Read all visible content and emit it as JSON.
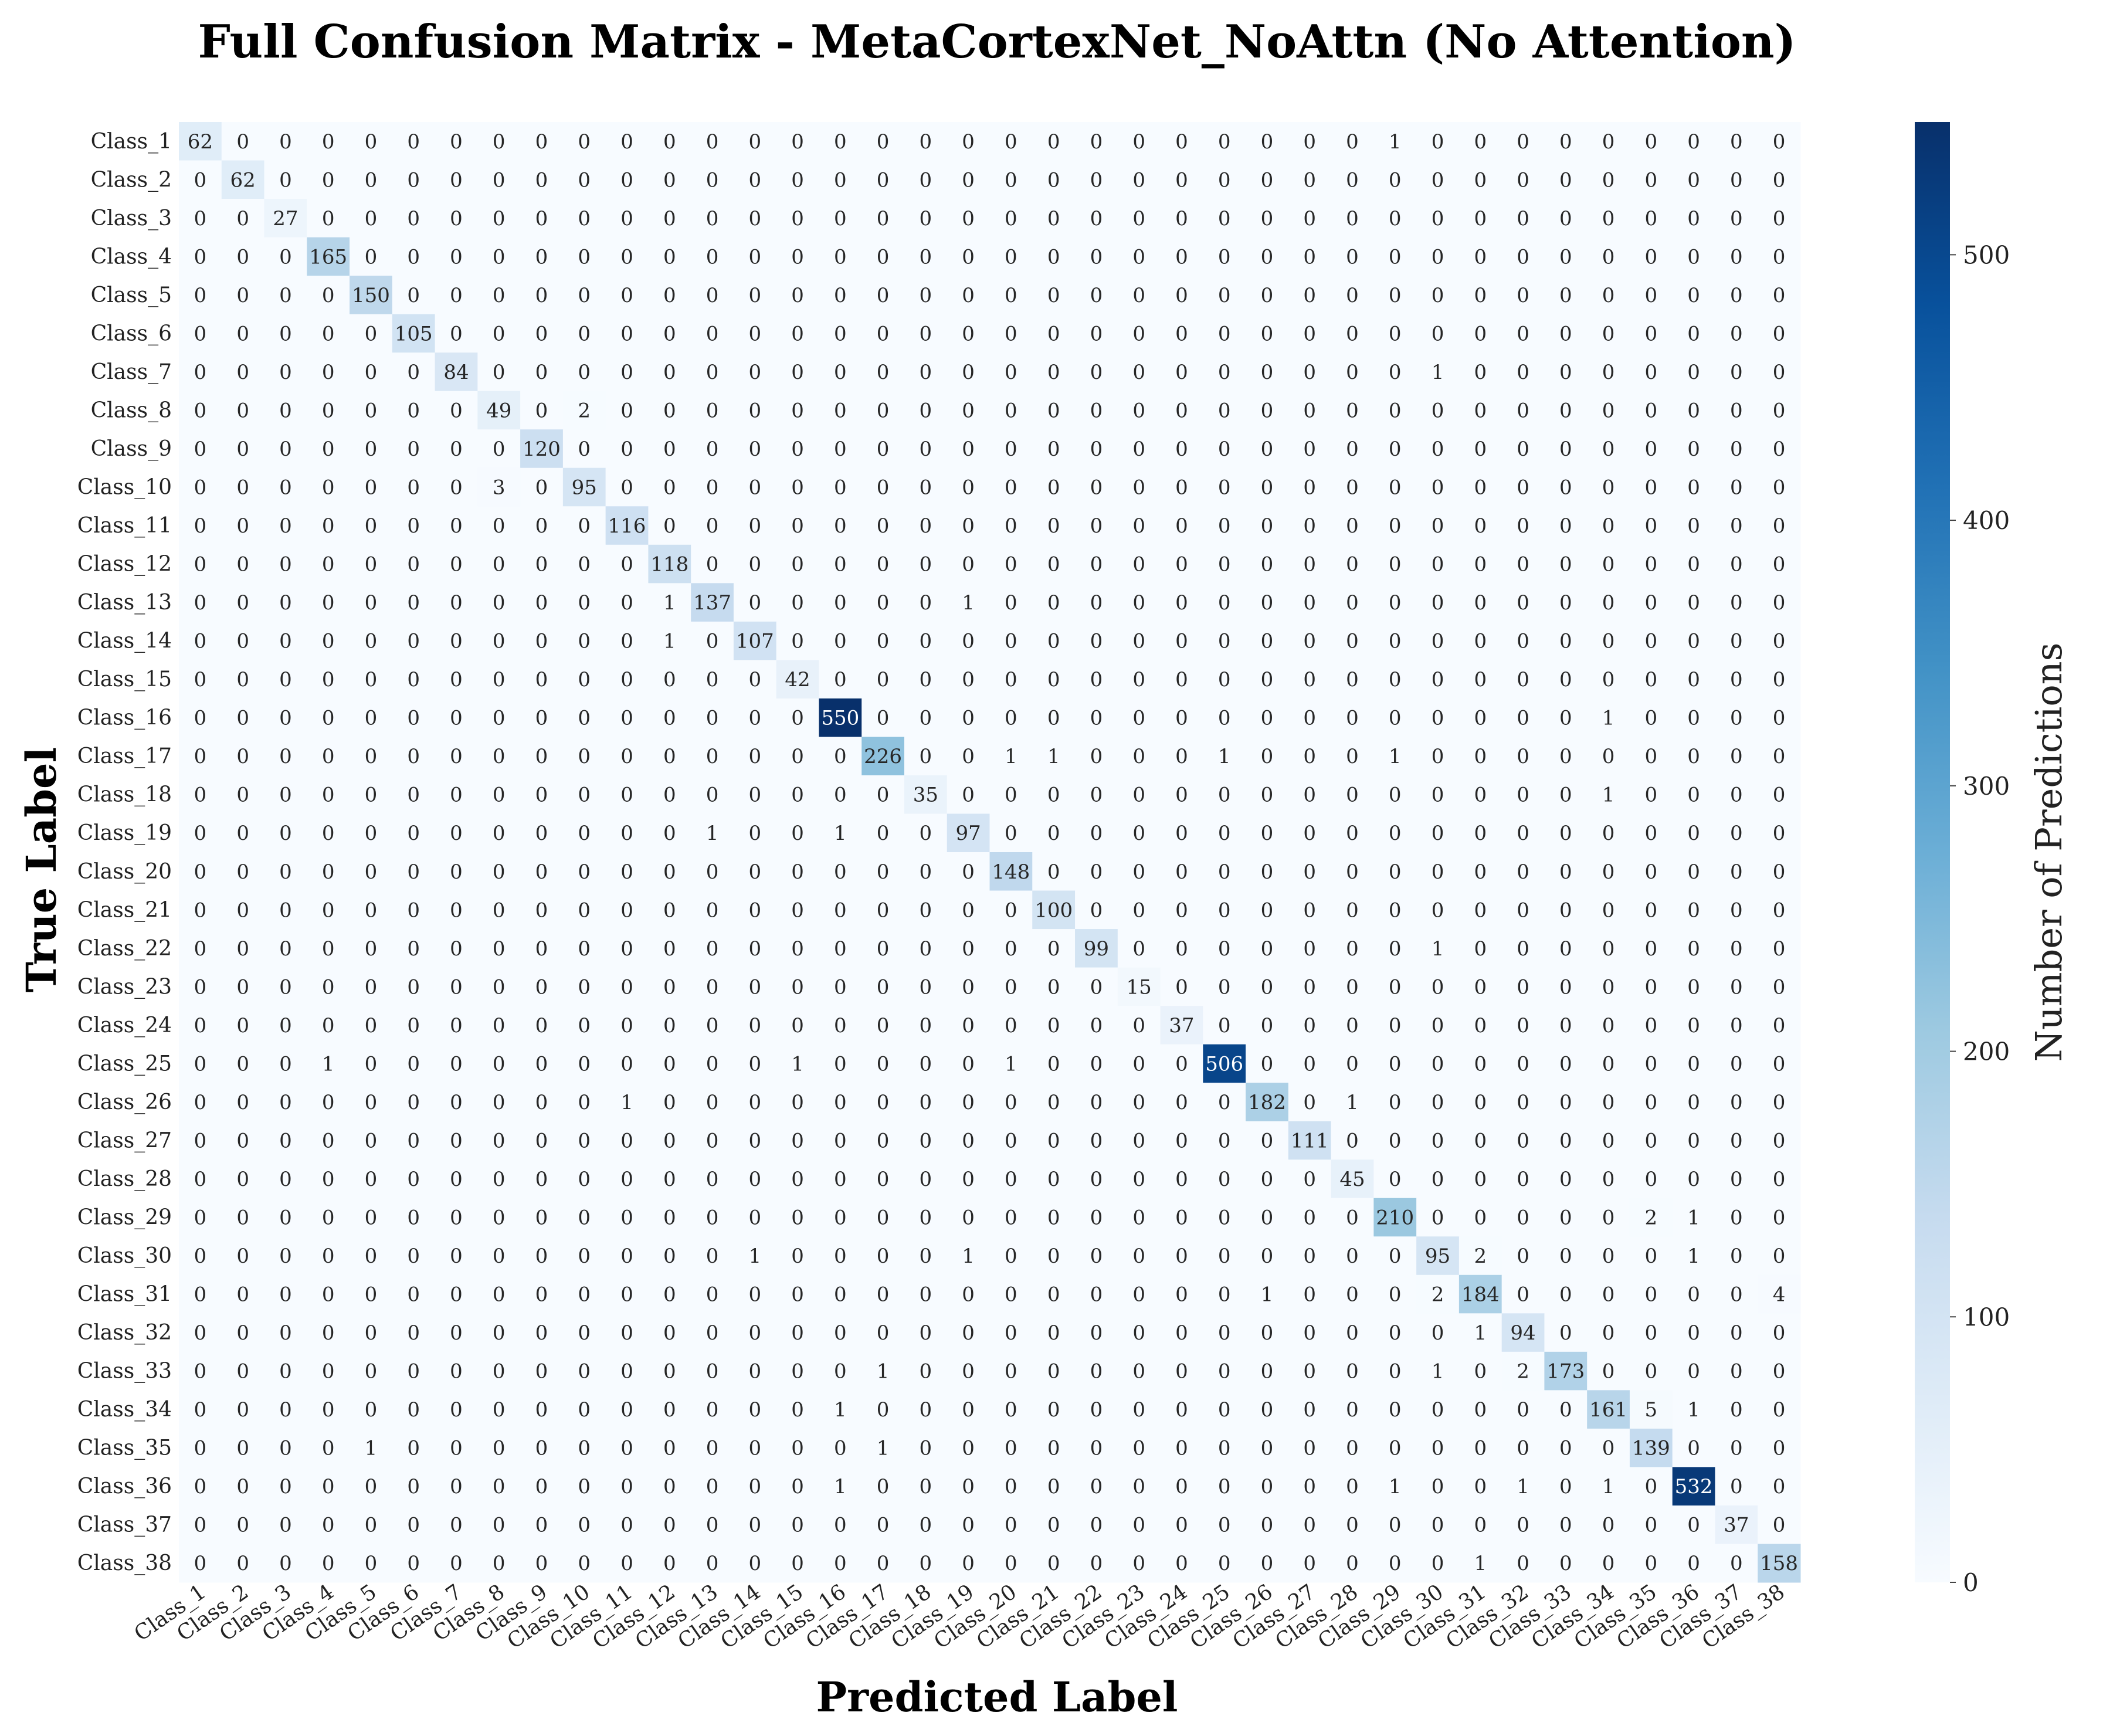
{
  "chart_data": {
    "type": "heatmap",
    "title": "Full Confusion Matrix - MetaCortexNet_NoAttn (No Attention)",
    "xlabel": "Predicted Label",
    "ylabel": "True Label",
    "colorbar_label": "Number of Predictions",
    "colorbar_ticks": [
      0,
      100,
      200,
      300,
      400,
      500
    ],
    "vmin": 0,
    "vmax": 550,
    "colormap": "Blues",
    "colors": {
      "low": "#f7fbff",
      "high": "#08306b"
    },
    "x_categories": [
      "Class_1",
      "Class_2",
      "Class_3",
      "Class_4",
      "Class_5",
      "Class_6",
      "Class_7",
      "Class_8",
      "Class_9",
      "Class_10",
      "Class_11",
      "Class_12",
      "Class_13",
      "Class_14",
      "Class_15",
      "Class_16",
      "Class_17",
      "Class_18",
      "Class_19",
      "Class_20",
      "Class_21",
      "Class_22",
      "Class_23",
      "Class_24",
      "Class_25",
      "Class_26",
      "Class_27",
      "Class_28",
      "Class_29",
      "Class_30",
      "Class_31",
      "Class_32",
      "Class_33",
      "Class_34",
      "Class_35",
      "Class_36",
      "Class_37",
      "Class_38"
    ],
    "y_categories": [
      "Class_1",
      "Class_2",
      "Class_3",
      "Class_4",
      "Class_5",
      "Class_6",
      "Class_7",
      "Class_8",
      "Class_9",
      "Class_10",
      "Class_11",
      "Class_12",
      "Class_13",
      "Class_14",
      "Class_15",
      "Class_16",
      "Class_17",
      "Class_18",
      "Class_19",
      "Class_20",
      "Class_21",
      "Class_22",
      "Class_23",
      "Class_24",
      "Class_25",
      "Class_26",
      "Class_27",
      "Class_28",
      "Class_29",
      "Class_30",
      "Class_31",
      "Class_32",
      "Class_33",
      "Class_34",
      "Class_35",
      "Class_36",
      "Class_37",
      "Class_38"
    ],
    "matrix": [
      [
        62,
        0,
        0,
        0,
        0,
        0,
        0,
        0,
        0,
        0,
        0,
        0,
        0,
        0,
        0,
        0,
        0,
        0,
        0,
        0,
        0,
        0,
        0,
        0,
        0,
        0,
        0,
        0,
        1,
        0,
        0,
        0,
        0,
        0,
        0,
        0,
        0,
        0
      ],
      [
        0,
        62,
        0,
        0,
        0,
        0,
        0,
        0,
        0,
        0,
        0,
        0,
        0,
        0,
        0,
        0,
        0,
        0,
        0,
        0,
        0,
        0,
        0,
        0,
        0,
        0,
        0,
        0,
        0,
        0,
        0,
        0,
        0,
        0,
        0,
        0,
        0,
        0
      ],
      [
        0,
        0,
        27,
        0,
        0,
        0,
        0,
        0,
        0,
        0,
        0,
        0,
        0,
        0,
        0,
        0,
        0,
        0,
        0,
        0,
        0,
        0,
        0,
        0,
        0,
        0,
        0,
        0,
        0,
        0,
        0,
        0,
        0,
        0,
        0,
        0,
        0,
        0
      ],
      [
        0,
        0,
        0,
        165,
        0,
        0,
        0,
        0,
        0,
        0,
        0,
        0,
        0,
        0,
        0,
        0,
        0,
        0,
        0,
        0,
        0,
        0,
        0,
        0,
        0,
        0,
        0,
        0,
        0,
        0,
        0,
        0,
        0,
        0,
        0,
        0,
        0,
        0
      ],
      [
        0,
        0,
        0,
        0,
        150,
        0,
        0,
        0,
        0,
        0,
        0,
        0,
        0,
        0,
        0,
        0,
        0,
        0,
        0,
        0,
        0,
        0,
        0,
        0,
        0,
        0,
        0,
        0,
        0,
        0,
        0,
        0,
        0,
        0,
        0,
        0,
        0,
        0
      ],
      [
        0,
        0,
        0,
        0,
        0,
        105,
        0,
        0,
        0,
        0,
        0,
        0,
        0,
        0,
        0,
        0,
        0,
        0,
        0,
        0,
        0,
        0,
        0,
        0,
        0,
        0,
        0,
        0,
        0,
        0,
        0,
        0,
        0,
        0,
        0,
        0,
        0,
        0
      ],
      [
        0,
        0,
        0,
        0,
        0,
        0,
        84,
        0,
        0,
        0,
        0,
        0,
        0,
        0,
        0,
        0,
        0,
        0,
        0,
        0,
        0,
        0,
        0,
        0,
        0,
        0,
        0,
        0,
        0,
        1,
        0,
        0,
        0,
        0,
        0,
        0,
        0,
        0
      ],
      [
        0,
        0,
        0,
        0,
        0,
        0,
        0,
        49,
        0,
        2,
        0,
        0,
        0,
        0,
        0,
        0,
        0,
        0,
        0,
        0,
        0,
        0,
        0,
        0,
        0,
        0,
        0,
        0,
        0,
        0,
        0,
        0,
        0,
        0,
        0,
        0,
        0,
        0
      ],
      [
        0,
        0,
        0,
        0,
        0,
        0,
        0,
        0,
        120,
        0,
        0,
        0,
        0,
        0,
        0,
        0,
        0,
        0,
        0,
        0,
        0,
        0,
        0,
        0,
        0,
        0,
        0,
        0,
        0,
        0,
        0,
        0,
        0,
        0,
        0,
        0,
        0,
        0
      ],
      [
        0,
        0,
        0,
        0,
        0,
        0,
        0,
        3,
        0,
        95,
        0,
        0,
        0,
        0,
        0,
        0,
        0,
        0,
        0,
        0,
        0,
        0,
        0,
        0,
        0,
        0,
        0,
        0,
        0,
        0,
        0,
        0,
        0,
        0,
        0,
        0,
        0,
        0
      ],
      [
        0,
        0,
        0,
        0,
        0,
        0,
        0,
        0,
        0,
        0,
        116,
        0,
        0,
        0,
        0,
        0,
        0,
        0,
        0,
        0,
        0,
        0,
        0,
        0,
        0,
        0,
        0,
        0,
        0,
        0,
        0,
        0,
        0,
        0,
        0,
        0,
        0,
        0
      ],
      [
        0,
        0,
        0,
        0,
        0,
        0,
        0,
        0,
        0,
        0,
        0,
        118,
        0,
        0,
        0,
        0,
        0,
        0,
        0,
        0,
        0,
        0,
        0,
        0,
        0,
        0,
        0,
        0,
        0,
        0,
        0,
        0,
        0,
        0,
        0,
        0,
        0,
        0
      ],
      [
        0,
        0,
        0,
        0,
        0,
        0,
        0,
        0,
        0,
        0,
        0,
        1,
        137,
        0,
        0,
        0,
        0,
        0,
        1,
        0,
        0,
        0,
        0,
        0,
        0,
        0,
        0,
        0,
        0,
        0,
        0,
        0,
        0,
        0,
        0,
        0,
        0,
        0
      ],
      [
        0,
        0,
        0,
        0,
        0,
        0,
        0,
        0,
        0,
        0,
        0,
        1,
        0,
        107,
        0,
        0,
        0,
        0,
        0,
        0,
        0,
        0,
        0,
        0,
        0,
        0,
        0,
        0,
        0,
        0,
        0,
        0,
        0,
        0,
        0,
        0,
        0,
        0
      ],
      [
        0,
        0,
        0,
        0,
        0,
        0,
        0,
        0,
        0,
        0,
        0,
        0,
        0,
        0,
        42,
        0,
        0,
        0,
        0,
        0,
        0,
        0,
        0,
        0,
        0,
        0,
        0,
        0,
        0,
        0,
        0,
        0,
        0,
        0,
        0,
        0,
        0,
        0
      ],
      [
        0,
        0,
        0,
        0,
        0,
        0,
        0,
        0,
        0,
        0,
        0,
        0,
        0,
        0,
        0,
        550,
        0,
        0,
        0,
        0,
        0,
        0,
        0,
        0,
        0,
        0,
        0,
        0,
        0,
        0,
        0,
        0,
        0,
        1,
        0,
        0,
        0,
        0
      ],
      [
        0,
        0,
        0,
        0,
        0,
        0,
        0,
        0,
        0,
        0,
        0,
        0,
        0,
        0,
        0,
        0,
        226,
        0,
        0,
        1,
        1,
        0,
        0,
        0,
        1,
        0,
        0,
        0,
        1,
        0,
        0,
        0,
        0,
        0,
        0,
        0,
        0,
        0
      ],
      [
        0,
        0,
        0,
        0,
        0,
        0,
        0,
        0,
        0,
        0,
        0,
        0,
        0,
        0,
        0,
        0,
        0,
        35,
        0,
        0,
        0,
        0,
        0,
        0,
        0,
        0,
        0,
        0,
        0,
        0,
        0,
        0,
        0,
        1,
        0,
        0,
        0,
        0
      ],
      [
        0,
        0,
        0,
        0,
        0,
        0,
        0,
        0,
        0,
        0,
        0,
        0,
        1,
        0,
        0,
        1,
        0,
        0,
        97,
        0,
        0,
        0,
        0,
        0,
        0,
        0,
        0,
        0,
        0,
        0,
        0,
        0,
        0,
        0,
        0,
        0,
        0,
        0
      ],
      [
        0,
        0,
        0,
        0,
        0,
        0,
        0,
        0,
        0,
        0,
        0,
        0,
        0,
        0,
        0,
        0,
        0,
        0,
        0,
        148,
        0,
        0,
        0,
        0,
        0,
        0,
        0,
        0,
        0,
        0,
        0,
        0,
        0,
        0,
        0,
        0,
        0,
        0
      ],
      [
        0,
        0,
        0,
        0,
        0,
        0,
        0,
        0,
        0,
        0,
        0,
        0,
        0,
        0,
        0,
        0,
        0,
        0,
        0,
        0,
        100,
        0,
        0,
        0,
        0,
        0,
        0,
        0,
        0,
        0,
        0,
        0,
        0,
        0,
        0,
        0,
        0,
        0
      ],
      [
        0,
        0,
        0,
        0,
        0,
        0,
        0,
        0,
        0,
        0,
        0,
        0,
        0,
        0,
        0,
        0,
        0,
        0,
        0,
        0,
        0,
        99,
        0,
        0,
        0,
        0,
        0,
        0,
        0,
        1,
        0,
        0,
        0,
        0,
        0,
        0,
        0,
        0
      ],
      [
        0,
        0,
        0,
        0,
        0,
        0,
        0,
        0,
        0,
        0,
        0,
        0,
        0,
        0,
        0,
        0,
        0,
        0,
        0,
        0,
        0,
        0,
        15,
        0,
        0,
        0,
        0,
        0,
        0,
        0,
        0,
        0,
        0,
        0,
        0,
        0,
        0,
        0
      ],
      [
        0,
        0,
        0,
        0,
        0,
        0,
        0,
        0,
        0,
        0,
        0,
        0,
        0,
        0,
        0,
        0,
        0,
        0,
        0,
        0,
        0,
        0,
        0,
        37,
        0,
        0,
        0,
        0,
        0,
        0,
        0,
        0,
        0,
        0,
        0,
        0,
        0,
        0
      ],
      [
        0,
        0,
        0,
        1,
        0,
        0,
        0,
        0,
        0,
        0,
        0,
        0,
        0,
        0,
        1,
        0,
        0,
        0,
        0,
        1,
        0,
        0,
        0,
        0,
        506,
        0,
        0,
        0,
        0,
        0,
        0,
        0,
        0,
        0,
        0,
        0,
        0,
        0
      ],
      [
        0,
        0,
        0,
        0,
        0,
        0,
        0,
        0,
        0,
        0,
        1,
        0,
        0,
        0,
        0,
        0,
        0,
        0,
        0,
        0,
        0,
        0,
        0,
        0,
        0,
        182,
        0,
        1,
        0,
        0,
        0,
        0,
        0,
        0,
        0,
        0,
        0,
        0
      ],
      [
        0,
        0,
        0,
        0,
        0,
        0,
        0,
        0,
        0,
        0,
        0,
        0,
        0,
        0,
        0,
        0,
        0,
        0,
        0,
        0,
        0,
        0,
        0,
        0,
        0,
        0,
        111,
        0,
        0,
        0,
        0,
        0,
        0,
        0,
        0,
        0,
        0,
        0
      ],
      [
        0,
        0,
        0,
        0,
        0,
        0,
        0,
        0,
        0,
        0,
        0,
        0,
        0,
        0,
        0,
        0,
        0,
        0,
        0,
        0,
        0,
        0,
        0,
        0,
        0,
        0,
        0,
        45,
        0,
        0,
        0,
        0,
        0,
        0,
        0,
        0,
        0,
        0
      ],
      [
        0,
        0,
        0,
        0,
        0,
        0,
        0,
        0,
        0,
        0,
        0,
        0,
        0,
        0,
        0,
        0,
        0,
        0,
        0,
        0,
        0,
        0,
        0,
        0,
        0,
        0,
        0,
        0,
        210,
        0,
        0,
        0,
        0,
        0,
        2,
        1,
        0,
        0
      ],
      [
        0,
        0,
        0,
        0,
        0,
        0,
        0,
        0,
        0,
        0,
        0,
        0,
        0,
        1,
        0,
        0,
        0,
        0,
        1,
        0,
        0,
        0,
        0,
        0,
        0,
        0,
        0,
        0,
        0,
        95,
        2,
        0,
        0,
        0,
        0,
        1,
        0,
        0
      ],
      [
        0,
        0,
        0,
        0,
        0,
        0,
        0,
        0,
        0,
        0,
        0,
        0,
        0,
        0,
        0,
        0,
        0,
        0,
        0,
        0,
        0,
        0,
        0,
        0,
        0,
        1,
        0,
        0,
        0,
        2,
        184,
        0,
        0,
        0,
        0,
        0,
        0,
        4
      ],
      [
        0,
        0,
        0,
        0,
        0,
        0,
        0,
        0,
        0,
        0,
        0,
        0,
        0,
        0,
        0,
        0,
        0,
        0,
        0,
        0,
        0,
        0,
        0,
        0,
        0,
        0,
        0,
        0,
        0,
        0,
        1,
        94,
        0,
        0,
        0,
        0,
        0,
        0
      ],
      [
        0,
        0,
        0,
        0,
        0,
        0,
        0,
        0,
        0,
        0,
        0,
        0,
        0,
        0,
        0,
        0,
        1,
        0,
        0,
        0,
        0,
        0,
        0,
        0,
        0,
        0,
        0,
        0,
        0,
        1,
        0,
        2,
        173,
        0,
        0,
        0,
        0,
        0
      ],
      [
        0,
        0,
        0,
        0,
        0,
        0,
        0,
        0,
        0,
        0,
        0,
        0,
        0,
        0,
        0,
        1,
        0,
        0,
        0,
        0,
        0,
        0,
        0,
        0,
        0,
        0,
        0,
        0,
        0,
        0,
        0,
        0,
        0,
        161,
        5,
        1,
        0,
        0
      ],
      [
        0,
        0,
        0,
        0,
        1,
        0,
        0,
        0,
        0,
        0,
        0,
        0,
        0,
        0,
        0,
        0,
        1,
        0,
        0,
        0,
        0,
        0,
        0,
        0,
        0,
        0,
        0,
        0,
        0,
        0,
        0,
        0,
        0,
        0,
        139,
        0,
        0,
        0
      ],
      [
        0,
        0,
        0,
        0,
        0,
        0,
        0,
        0,
        0,
        0,
        0,
        0,
        0,
        0,
        0,
        1,
        0,
        0,
        0,
        0,
        0,
        0,
        0,
        0,
        0,
        0,
        0,
        0,
        1,
        0,
        0,
        1,
        0,
        1,
        0,
        532,
        0,
        0
      ],
      [
        0,
        0,
        0,
        0,
        0,
        0,
        0,
        0,
        0,
        0,
        0,
        0,
        0,
        0,
        0,
        0,
        0,
        0,
        0,
        0,
        0,
        0,
        0,
        0,
        0,
        0,
        0,
        0,
        0,
        0,
        0,
        0,
        0,
        0,
        0,
        0,
        37,
        0
      ],
      [
        0,
        0,
        0,
        0,
        0,
        0,
        0,
        0,
        0,
        0,
        0,
        0,
        0,
        0,
        0,
        0,
        0,
        0,
        0,
        0,
        0,
        0,
        0,
        0,
        0,
        0,
        0,
        0,
        0,
        0,
        1,
        0,
        0,
        0,
        0,
        0,
        0,
        158
      ]
    ],
    "grid": false,
    "legend": "colorbar-right"
  }
}
